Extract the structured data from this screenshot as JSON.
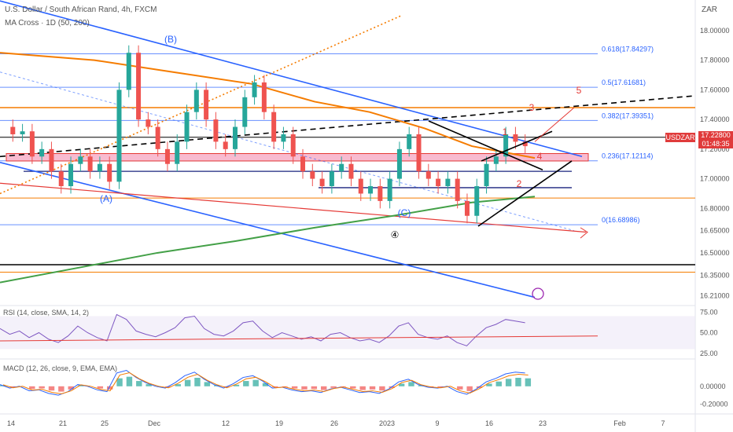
{
  "header": {
    "title": "U.S. Dollar / South African Rand, 4h, FXCM",
    "ma_cross": "MA Cross · 1D (50, 200)"
  },
  "currency": "ZAR",
  "price_badge": {
    "symbol": "USDZAR",
    "price": "17.22800",
    "countdown": "01:48:35"
  },
  "colors": {
    "bg": "#ffffff",
    "blue": "#2962ff",
    "orange": "#f57c00",
    "green": "#43a047",
    "red": "#e53935",
    "candle_up": "#26a69a",
    "candle_down": "#ef5350",
    "rsi": "#7e57c2"
  },
  "chart_data": [
    {
      "type": "candlestick",
      "title": "U.S. Dollar / South African Rand, 4h, FXCM",
      "yaxis_ticks": [
        "18.00000",
        "17.80000",
        "17.60000",
        "17.40000",
        "17.20000",
        "17.00000",
        "16.80000",
        "16.65000",
        "16.50000",
        "16.35000",
        "16.21000"
      ],
      "xaxis_ticks": [
        "14",
        "21",
        "25",
        "Dec",
        "12",
        "19",
        "26",
        "2023",
        "9",
        "16",
        "23",
        "Feb",
        "7"
      ],
      "ylim": [
        16.15,
        18.1
      ],
      "approx_close_path": [
        17.35,
        17.3,
        17.32,
        17.15,
        17.2,
        17.05,
        16.95,
        17.1,
        17.15,
        17.05,
        17.1,
        16.98,
        17.6,
        17.85,
        17.4,
        17.35,
        17.2,
        17.1,
        17.25,
        17.45,
        17.6,
        17.4,
        17.25,
        17.2,
        17.35,
        17.55,
        17.65,
        17.45,
        17.25,
        17.3,
        17.15,
        17.05,
        17.0,
        16.95,
        17.05,
        17.1,
        17.0,
        16.9,
        16.95,
        16.85,
        17.0,
        17.2,
        17.3,
        17.05,
        17.0,
        16.95,
        17.0,
        16.85,
        16.75,
        16.95,
        17.1,
        17.15,
        17.3,
        17.25,
        17.22
      ],
      "fibonacci": [
        {
          "label": "0.618(17.84297)",
          "value": 17.84297
        },
        {
          "label": "0.5(17.61681)",
          "value": 17.61681
        },
        {
          "label": "0.382(17.39351)",
          "value": 17.39351
        },
        {
          "label": "0.236(17.12114)",
          "value": 17.12114
        },
        {
          "label": "0(16.68986)",
          "value": 16.68986
        }
      ],
      "annotations": [
        "(B)",
        "(A)",
        "(C)",
        "④",
        "1",
        "2",
        "3",
        "4",
        "5"
      ]
    },
    {
      "type": "line",
      "title": "RSI (14, close, SMA, 14, 2)",
      "yaxis_ticks": [
        "75.00",
        "50.00",
        "25.00"
      ],
      "ylim": [
        20,
        80
      ],
      "rsi_path": [
        55,
        48,
        52,
        44,
        50,
        42,
        38,
        46,
        58,
        50,
        44,
        40,
        72,
        66,
        52,
        48,
        45,
        50,
        56,
        68,
        70,
        55,
        48,
        46,
        52,
        62,
        64,
        52,
        44,
        50,
        46,
        42,
        45,
        40,
        48,
        50,
        44,
        40,
        42,
        38,
        46,
        58,
        62,
        48,
        44,
        42,
        46,
        38,
        34,
        46,
        56,
        60,
        66,
        64,
        62
      ]
    },
    {
      "type": "line",
      "title": "MACD (12, 26, close, 9, EMA, EMA)",
      "yaxis_ticks": [
        "0.00000",
        "-0.20000"
      ],
      "ylim": [
        -0.25,
        0.3
      ],
      "macd_path": [
        0.02,
        -0.02,
        0.0,
        -0.05,
        -0.04,
        -0.08,
        -0.1,
        -0.06,
        0.02,
        0.0,
        -0.04,
        -0.06,
        0.15,
        0.18,
        0.1,
        0.04,
        0.0,
        -0.02,
        0.04,
        0.12,
        0.16,
        0.08,
        0.02,
        -0.02,
        0.03,
        0.1,
        0.12,
        0.06,
        -0.02,
        -0.01,
        -0.04,
        -0.06,
        -0.05,
        -0.07,
        -0.03,
        -0.01,
        -0.04,
        -0.07,
        -0.06,
        -0.08,
        -0.03,
        0.05,
        0.08,
        0.02,
        -0.01,
        -0.02,
        0.0,
        -0.06,
        -0.09,
        -0.03,
        0.05,
        0.09,
        0.14,
        0.16,
        0.15
      ]
    }
  ]
}
